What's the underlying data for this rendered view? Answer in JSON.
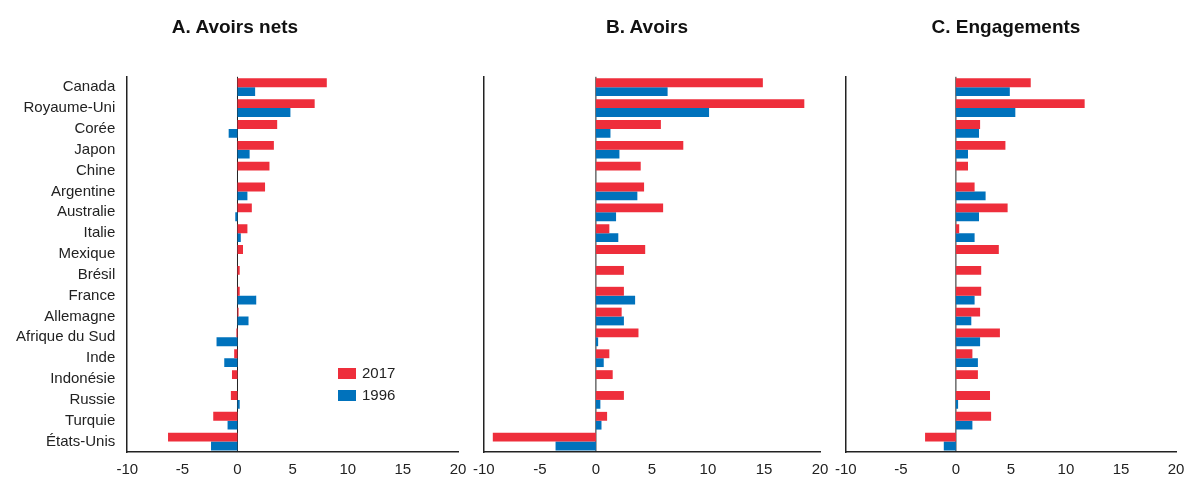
{
  "chart_data": [
    {
      "type": "bar",
      "orientation": "horizontal",
      "title": "A. Avoirs nets",
      "categories": [
        "Canada",
        "Royaume-Uni",
        "Corée",
        "Japon",
        "Chine",
        "Argentine",
        "Australie",
        "Italie",
        "Mexique",
        "Brésil",
        "France",
        "Allemagne",
        "Afrique du Sud",
        "Inde",
        "Indonésie",
        "Russie",
        "Turquie",
        "États-Unis"
      ],
      "series": [
        {
          "name": "2017",
          "color": "#ee2e3b",
          "values": [
            8.1,
            7.0,
            3.6,
            3.3,
            2.9,
            2.5,
            1.3,
            0.9,
            0.5,
            0.2,
            0.2,
            0.1,
            -0.1,
            -0.3,
            -0.5,
            -0.6,
            -2.2,
            -6.3
          ]
        },
        {
          "name": "1996",
          "color": "#0072bc",
          "values": [
            1.6,
            4.8,
            -0.8,
            1.1,
            null,
            0.9,
            -0.2,
            0.3,
            null,
            null,
            1.7,
            1.0,
            -1.9,
            -1.2,
            null,
            0.2,
            -0.9,
            -2.4
          ]
        }
      ],
      "xlim": [
        -10,
        20
      ],
      "xticks": [
        -10,
        -5,
        0,
        5,
        10,
        15,
        20
      ],
      "ref_lines": [
        {
          "axis": "x",
          "value": 0
        }
      ],
      "legend": "bottom right"
    },
    {
      "type": "bar",
      "orientation": "horizontal",
      "title": "B. Avoirs",
      "categories": [
        null,
        null,
        null,
        null,
        null,
        null,
        null,
        null,
        null,
        null,
        null,
        null,
        null,
        null,
        null,
        null,
        null,
        null
      ],
      "series": [
        {
          "color": "#ee2e3b",
          "values": [
            14.9,
            18.6,
            5.8,
            7.8,
            4.0,
            4.3,
            6.0,
            1.2,
            4.4,
            2.5,
            2.5,
            2.3,
            3.8,
            1.2,
            1.5,
            2.5,
            1.0,
            -9.2
          ]
        },
        {
          "color": "#0072bc",
          "values": [
            6.4,
            10.1,
            1.3,
            2.1,
            null,
            3.7,
            1.8,
            2.0,
            null,
            null,
            3.5,
            2.5,
            0.2,
            0.7,
            null,
            0.4,
            0.5,
            -3.6
          ]
        }
      ],
      "xlim": [
        -10,
        20
      ],
      "xticks": [
        -10,
        -5,
        0,
        5,
        10,
        15,
        20
      ],
      "ref_lines": [
        {
          "axis": "x",
          "value": 0
        }
      ],
      "tick_labels": "x"
    },
    {
      "type": "bar",
      "orientation": "horizontal",
      "title": "C. Engagements",
      "categories": [
        null,
        null,
        null,
        null,
        null,
        null,
        null,
        null,
        null,
        null,
        null,
        null,
        null,
        null,
        null,
        null,
        null,
        null
      ],
      "series": [
        {
          "color": "#ee2e3b",
          "values": [
            6.8,
            11.7,
            2.2,
            4.5,
            1.1,
            1.7,
            4.7,
            0.3,
            3.9,
            2.3,
            2.3,
            2.2,
            4.0,
            1.5,
            2.0,
            3.1,
            3.2,
            -2.8
          ]
        },
        {
          "color": "#0072bc",
          "values": [
            4.9,
            5.4,
            2.1,
            1.1,
            null,
            2.7,
            2.1,
            1.7,
            null,
            null,
            1.7,
            1.4,
            2.2,
            2.0,
            null,
            0.2,
            1.5,
            -1.1
          ]
        }
      ],
      "xlim": [
        -10,
        20
      ],
      "xticks": [
        -10,
        -5,
        0,
        5,
        10,
        15,
        20
      ],
      "ref_lines": [
        {
          "axis": "x",
          "value": 0
        }
      ],
      "tick_labels": "x"
    }
  ]
}
